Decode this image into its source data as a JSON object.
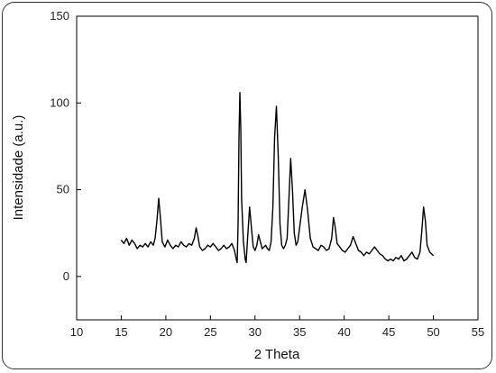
{
  "chart_data": {
    "type": "line",
    "title": "",
    "xlabel": "2 Theta",
    "ylabel": "Intensidade (a.u.)",
    "xlim": [
      10,
      55
    ],
    "ylim": [
      -25,
      150
    ],
    "x_ticks": [
      10,
      15,
      20,
      25,
      30,
      35,
      40,
      45,
      50,
      55
    ],
    "y_ticks": [
      0,
      50,
      100,
      150
    ],
    "grid": false,
    "legend": "none",
    "series": [
      {
        "color": "#000000",
        "points": [
          [
            15.0,
            21
          ],
          [
            15.3,
            19
          ],
          [
            15.6,
            22
          ],
          [
            15.9,
            18
          ],
          [
            16.2,
            21
          ],
          [
            16.5,
            19
          ],
          [
            16.8,
            16
          ],
          [
            17.1,
            18
          ],
          [
            17.4,
            17
          ],
          [
            17.7,
            19
          ],
          [
            18.0,
            17
          ],
          [
            18.3,
            20
          ],
          [
            18.6,
            18
          ],
          [
            18.8,
            22
          ],
          [
            19.0,
            32
          ],
          [
            19.2,
            45
          ],
          [
            19.4,
            33
          ],
          [
            19.6,
            20
          ],
          [
            19.9,
            17
          ],
          [
            20.2,
            21
          ],
          [
            20.5,
            18
          ],
          [
            20.8,
            16
          ],
          [
            21.1,
            18
          ],
          [
            21.4,
            17
          ],
          [
            21.7,
            20
          ],
          [
            22.0,
            18
          ],
          [
            22.3,
            17
          ],
          [
            22.6,
            19
          ],
          [
            22.9,
            18
          ],
          [
            23.2,
            22
          ],
          [
            23.4,
            28
          ],
          [
            23.6,
            23
          ],
          [
            23.8,
            17
          ],
          [
            24.1,
            15
          ],
          [
            24.4,
            16
          ],
          [
            24.7,
            18
          ],
          [
            25.0,
            17
          ],
          [
            25.3,
            19
          ],
          [
            25.6,
            17
          ],
          [
            25.9,
            15
          ],
          [
            26.2,
            16
          ],
          [
            26.5,
            18
          ],
          [
            26.8,
            16
          ],
          [
            27.1,
            17
          ],
          [
            27.4,
            19
          ],
          [
            27.7,
            15
          ],
          [
            27.9,
            10
          ],
          [
            28.0,
            8
          ],
          [
            28.1,
            30
          ],
          [
            28.2,
            80
          ],
          [
            28.3,
            106
          ],
          [
            28.4,
            85
          ],
          [
            28.5,
            45
          ],
          [
            28.7,
            20
          ],
          [
            28.9,
            10
          ],
          [
            29.0,
            8
          ],
          [
            29.2,
            25
          ],
          [
            29.4,
            40
          ],
          [
            29.6,
            28
          ],
          [
            29.8,
            17
          ],
          [
            30.0,
            15
          ],
          [
            30.2,
            18
          ],
          [
            30.4,
            24
          ],
          [
            30.6,
            20
          ],
          [
            30.8,
            16
          ],
          [
            31.0,
            17
          ],
          [
            31.2,
            18
          ],
          [
            31.4,
            16
          ],
          [
            31.6,
            15
          ],
          [
            31.8,
            20
          ],
          [
            32.0,
            40
          ],
          [
            32.2,
            80
          ],
          [
            32.4,
            98
          ],
          [
            32.6,
            70
          ],
          [
            32.8,
            30
          ],
          [
            33.0,
            18
          ],
          [
            33.2,
            16
          ],
          [
            33.4,
            18
          ],
          [
            33.6,
            22
          ],
          [
            33.8,
            45
          ],
          [
            34.0,
            68
          ],
          [
            34.2,
            50
          ],
          [
            34.4,
            25
          ],
          [
            34.6,
            18
          ],
          [
            34.8,
            20
          ],
          [
            35.0,
            28
          ],
          [
            35.3,
            40
          ],
          [
            35.6,
            50
          ],
          [
            35.9,
            38
          ],
          [
            36.2,
            22
          ],
          [
            36.5,
            17
          ],
          [
            36.8,
            16
          ],
          [
            37.1,
            15
          ],
          [
            37.4,
            18
          ],
          [
            37.7,
            17
          ],
          [
            38.0,
            15
          ],
          [
            38.3,
            16
          ],
          [
            38.6,
            22
          ],
          [
            38.8,
            34
          ],
          [
            39.0,
            28
          ],
          [
            39.2,
            19
          ],
          [
            39.5,
            17
          ],
          [
            39.8,
            15
          ],
          [
            40.1,
            14
          ],
          [
            40.4,
            16
          ],
          [
            40.7,
            18
          ],
          [
            41.0,
            23
          ],
          [
            41.3,
            19
          ],
          [
            41.6,
            15
          ],
          [
            41.9,
            14
          ],
          [
            42.2,
            12
          ],
          [
            42.5,
            14
          ],
          [
            42.8,
            13
          ],
          [
            43.1,
            15
          ],
          [
            43.4,
            17
          ],
          [
            43.7,
            15
          ],
          [
            44.0,
            13
          ],
          [
            44.3,
            12
          ],
          [
            44.6,
            10
          ],
          [
            44.9,
            9
          ],
          [
            45.2,
            10
          ],
          [
            45.5,
            9
          ],
          [
            45.8,
            11
          ],
          [
            46.1,
            10
          ],
          [
            46.4,
            12
          ],
          [
            46.7,
            9
          ],
          [
            47.0,
            10
          ],
          [
            47.3,
            12
          ],
          [
            47.6,
            14
          ],
          [
            47.9,
            11
          ],
          [
            48.2,
            10
          ],
          [
            48.5,
            14
          ],
          [
            48.7,
            26
          ],
          [
            48.9,
            40
          ],
          [
            49.1,
            32
          ],
          [
            49.3,
            18
          ],
          [
            49.6,
            14
          ],
          [
            50.0,
            12
          ]
        ]
      }
    ]
  }
}
